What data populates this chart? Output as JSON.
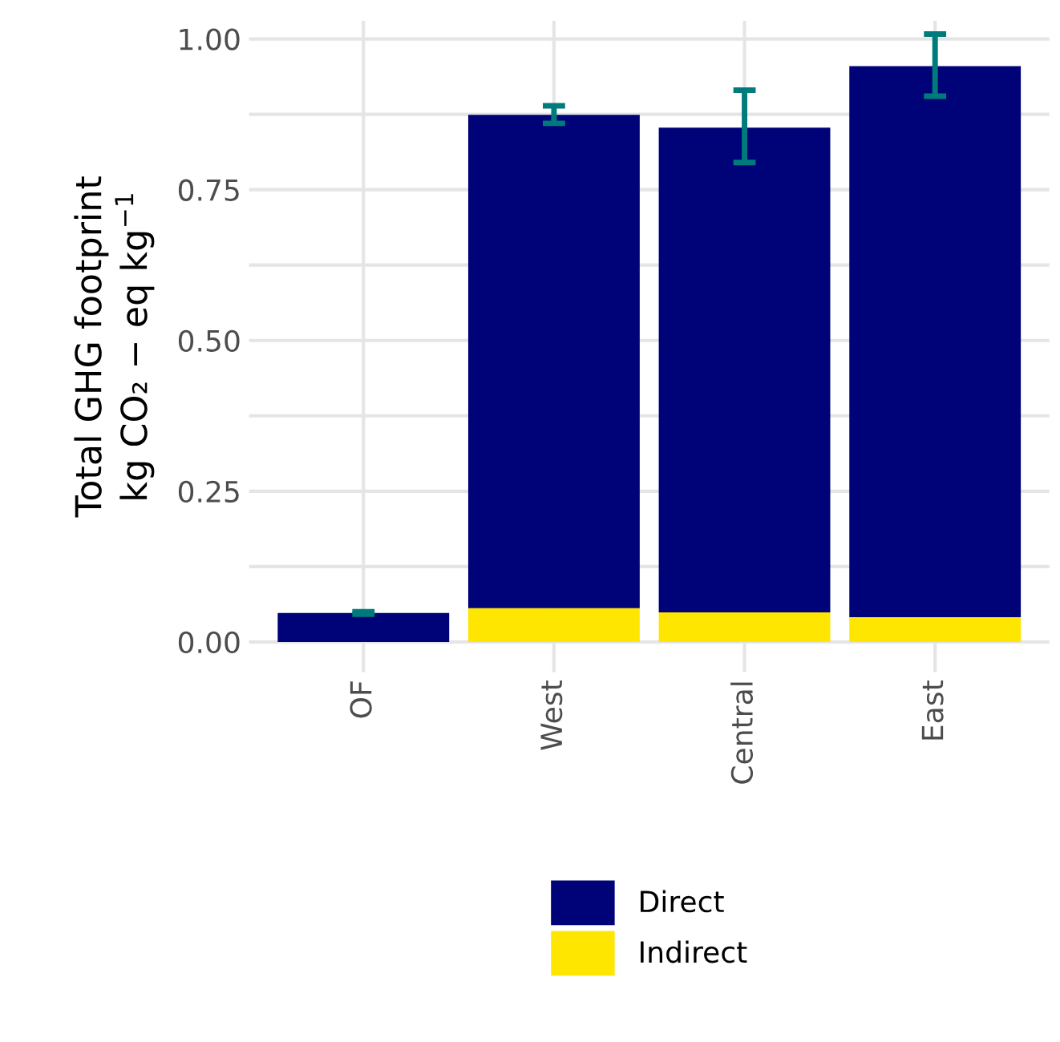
{
  "chart_data": {
    "type": "bar",
    "stacked": true,
    "ylabel": "Total GHG footprint\nkg CO₂ − eq kg$^{−1}$",
    "categories": [
      "OF",
      "West",
      "Central",
      "East"
    ],
    "series": [
      {
        "name": "Indirect",
        "color": "#ffe600",
        "values": [
          null,
          0.056,
          0.049,
          0.041
        ]
      },
      {
        "name": "Direct",
        "color": "#000277",
        "values": [
          0.048,
          0.818,
          0.804,
          0.914
        ],
        "errors": [
          [
            0.046,
            0.05
          ],
          [
            0.86,
            0.889
          ],
          [
            0.795,
            0.915
          ],
          [
            0.905,
            1.008
          ]
        ]
      }
    ],
    "ylim": [
      -0.05,
      1.03
    ],
    "yticks": [
      {
        "value": 0,
        "label": "0.00"
      },
      {
        "value": 0.125,
        "label": null
      },
      {
        "value": 0.25,
        "label": "0.25"
      },
      {
        "value": 0.375,
        "label": null
      },
      {
        "value": 0.5,
        "label": "0.50"
      },
      {
        "value": 0.625,
        "label": null
      },
      {
        "value": 0.75,
        "label": "0.75"
      },
      {
        "value": 0.875,
        "label": null
      },
      {
        "value": 1,
        "label": "1.00"
      }
    ],
    "grid": true,
    "legend": "bottom"
  }
}
